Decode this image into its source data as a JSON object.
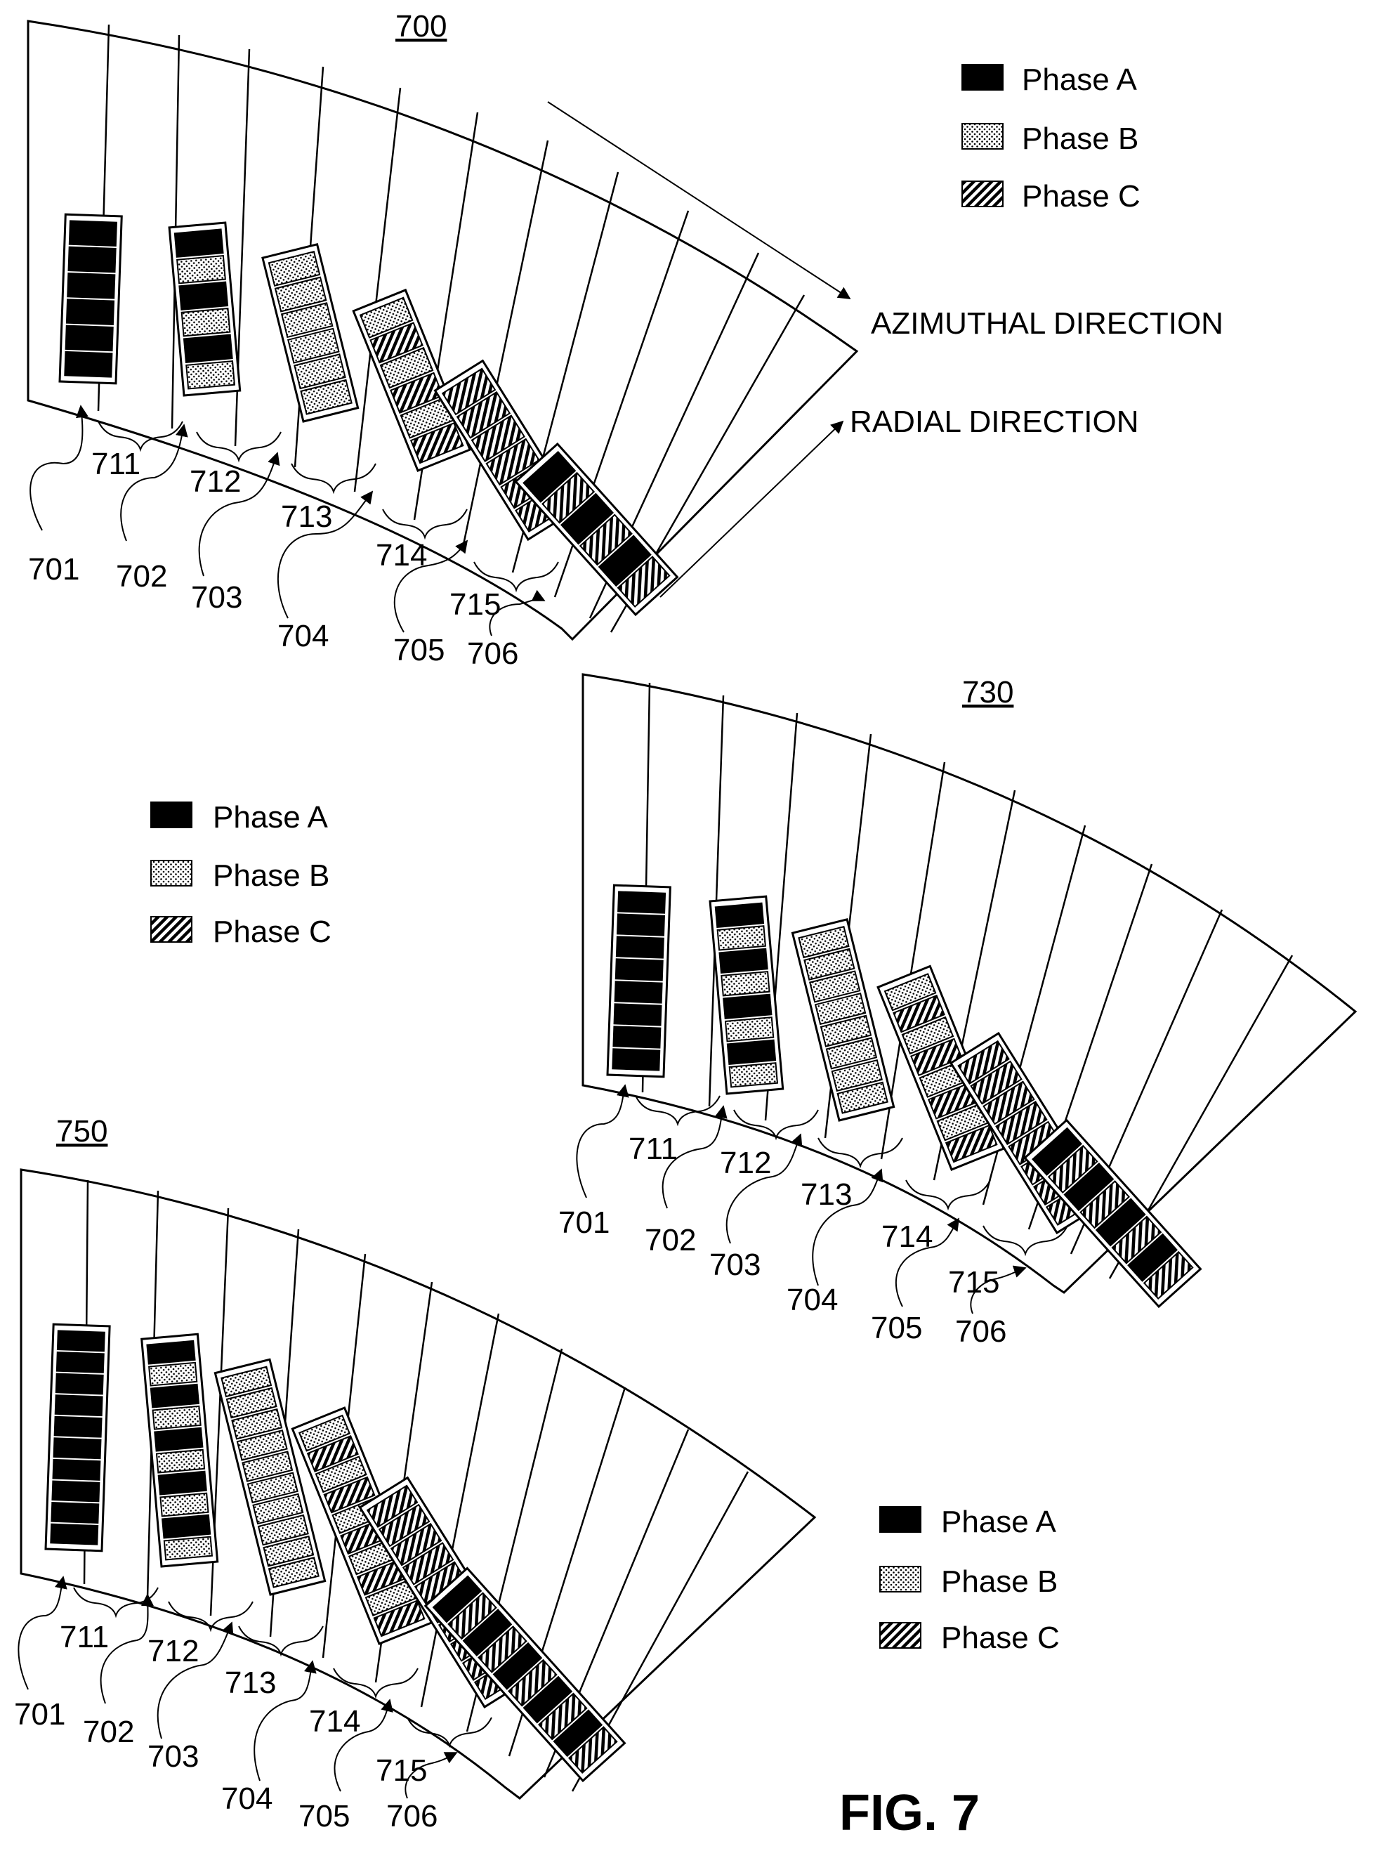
{
  "figure_label": "FIG. 7",
  "legend_items": [
    "Phase A",
    "Phase B",
    "Phase C"
  ],
  "direction_labels": {
    "azimuthal": "AZIMUTHAL DIRECTION",
    "radial": "RADIAL DIRECTION"
  },
  "phase_fills": {
    "A": "solid-black",
    "B": "dotted",
    "C": "diagonal-hatch"
  },
  "slot_refs": [
    "701",
    "702",
    "703",
    "704",
    "705",
    "706"
  ],
  "tooth_refs": [
    "711",
    "712",
    "713",
    "714",
    "715"
  ],
  "panels": [
    {
      "ref": "700",
      "slots": [
        "AAAAAA",
        "ABABAB",
        "BBBBBB",
        "BCBCBC",
        "CCCCCC",
        "ACACAC"
      ]
    },
    {
      "ref": "730",
      "slots": [
        "AAAAAAAA",
        "ABABABAB",
        "BBBBBBBB",
        "BCBCBCBC",
        "CCCCCCCC",
        "ACACACAC"
      ]
    },
    {
      "ref": "750",
      "slots": [
        "AAAAAAAAAA",
        "ABABABABAB",
        "BBBBBBBBBB",
        "BCBCBCBCBC",
        "CCCCCCCCCC",
        "ACACACACAC"
      ]
    }
  ]
}
